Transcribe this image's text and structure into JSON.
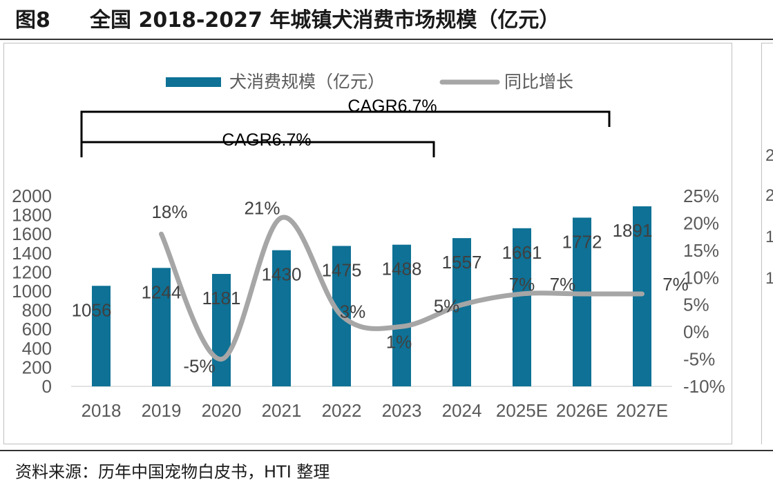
{
  "header": {
    "figure_label": "图8",
    "title": "全国 2018-2027 年城镇犬消费市场规模（亿元）"
  },
  "source": "资料来源：历年中国宠物白皮书，HTI 整理",
  "chart_data": {
    "type": "bar",
    "categories": [
      "2018",
      "2019",
      "2020",
      "2021",
      "2022",
      "2023",
      "2024",
      "2025E",
      "2026E",
      "2027E"
    ],
    "series": [
      {
        "name": "犬消费规模（亿元）",
        "type": "bar",
        "axis": "left",
        "values": [
          1056,
          1244,
          1181,
          1430,
          1475,
          1488,
          1557,
          1661,
          1772,
          1891
        ],
        "color": "#0e7195"
      },
      {
        "name": "同比增长",
        "type": "line",
        "axis": "right",
        "smooth": true,
        "values": [
          null,
          18,
          -5,
          21,
          3,
          1,
          5,
          7,
          7,
          7
        ],
        "labels": [
          "",
          "18%",
          "-5%",
          "21%",
          "3%",
          "1%",
          "5%",
          "7%",
          "7%",
          "7%"
        ],
        "color": "#a6a6a6"
      }
    ],
    "y_left": {
      "ylim": [
        0,
        2000
      ],
      "ticks": [
        "0",
        "200",
        "400",
        "600",
        "800",
        "1000",
        "1200",
        "1400",
        "1600",
        "1800",
        "2000"
      ]
    },
    "y_right": {
      "ylim": [
        -10,
        25
      ],
      "ticks": [
        "-10%",
        "-5%",
        "0%",
        "5%",
        "10%",
        "15%",
        "20%",
        "25%"
      ]
    },
    "legend": {
      "position": "top"
    },
    "grid": false,
    "annotations": [
      {
        "text": "CAGR6.7%",
        "from": "2018",
        "to": "2027E"
      },
      {
        "text": "CAGR6.7%",
        "from": "2018",
        "to": "2024"
      }
    ]
  },
  "cut_panel": {
    "tick_labels": [
      "2",
      "2",
      "1",
      "1"
    ]
  }
}
